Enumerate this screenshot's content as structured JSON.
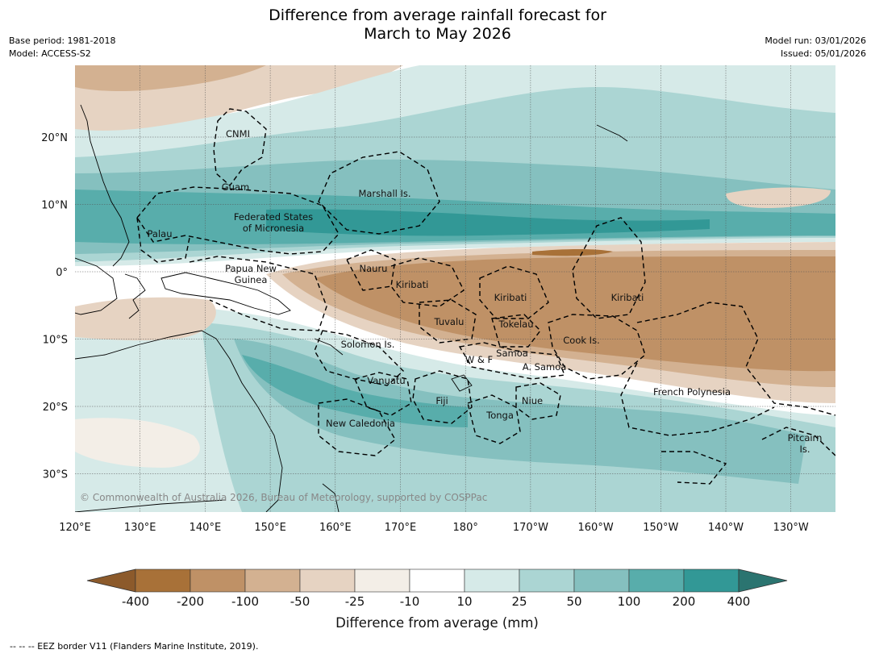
{
  "header": {
    "title_line1": "Difference from average rainfall forecast for",
    "title_line2": "March to May 2026",
    "base_period": "Base period: 1981-2018",
    "model": "Model: ACCESS-S2",
    "model_run": "Model run: 03/01/2026",
    "issued": "Issued: 05/01/2026"
  },
  "map": {
    "lat_labels": [
      "20°N",
      "10°N",
      "0°",
      "10°S",
      "20°S",
      "30°S"
    ],
    "lon_labels": [
      "120°E",
      "130°E",
      "140°E",
      "150°E",
      "160°E",
      "170°E",
      "180°",
      "170°W",
      "160°W",
      "150°W",
      "140°W",
      "130°W"
    ],
    "regions": [
      {
        "name": "CNMI"
      },
      {
        "name": "Guam"
      },
      {
        "name": "Marshall Is."
      },
      {
        "name": "Federated States"
      },
      {
        "name": "of Micronesia"
      },
      {
        "name": "Palau"
      },
      {
        "name": "Nauru"
      },
      {
        "name": "Papua New"
      },
      {
        "name": "Guinea"
      },
      {
        "name": "Kiribati"
      },
      {
        "name": "Kiribati"
      },
      {
        "name": "Kiribati"
      },
      {
        "name": "Tuvalu"
      },
      {
        "name": "Tokelau"
      },
      {
        "name": "Cook Is."
      },
      {
        "name": "Solomon Is."
      },
      {
        "name": "W & F"
      },
      {
        "name": "Samoa"
      },
      {
        "name": "A. Samoa"
      },
      {
        "name": "Vanuatu"
      },
      {
        "name": "Fiji"
      },
      {
        "name": "Niue"
      },
      {
        "name": "Tonga"
      },
      {
        "name": "French Polynesia"
      },
      {
        "name": "New Caledonia"
      },
      {
        "name": "Pitcairn"
      },
      {
        "name": "Is."
      }
    ],
    "copyright": "© Commonwealth of Australia 2026, Bureau of Meteorology, supported by COSPPac"
  },
  "colorbar": {
    "title": "Difference from average (mm)",
    "ticks": [
      "-400",
      "-200",
      "-100",
      "-50",
      "-25",
      "-10",
      "10",
      "25",
      "50",
      "100",
      "200",
      "400"
    ],
    "colors": [
      "#8c5a2b",
      "#a87138",
      "#bf9166",
      "#d3b191",
      "#e6d3c2",
      "#f3eee7",
      "#ffffff",
      "#d6eae8",
      "#abd5d3",
      "#85c0bf",
      "#58adab",
      "#329896",
      "#2b7470"
    ]
  },
  "footnote": "-- -- -- EEZ border V11 (Flanders Marine Institute, 2019)."
}
